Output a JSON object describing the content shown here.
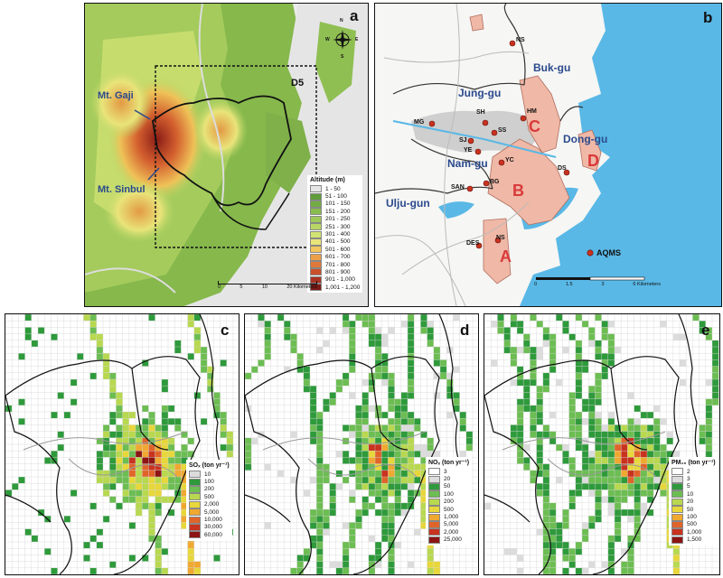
{
  "panels": {
    "a": {
      "label": "a",
      "d5_label": "D5",
      "mt_gaji": "Mt. Gaji",
      "mt_sinbul": "Mt. Sinbul",
      "compass": {
        "n": "N",
        "s": "S",
        "e": "E",
        "w": "W"
      },
      "legend_title": "Altitude (m)",
      "legend": [
        {
          "label": "1 - 50",
          "color": "#e6e6e6"
        },
        {
          "label": "51 - 100",
          "color": "#5f9c3a"
        },
        {
          "label": "101 - 150",
          "color": "#73ab43"
        },
        {
          "label": "151 - 200",
          "color": "#89bb4e"
        },
        {
          "label": "201 - 250",
          "color": "#9fc85a"
        },
        {
          "label": "251 - 300",
          "color": "#b8d666"
        },
        {
          "label": "301 - 400",
          "color": "#d2e273"
        },
        {
          "label": "401 - 500",
          "color": "#e9e47a"
        },
        {
          "label": "501 - 600",
          "color": "#f2c65c"
        },
        {
          "label": "601 - 700",
          "color": "#eca048"
        },
        {
          "label": "701 - 800",
          "color": "#df7838"
        },
        {
          "label": "801 - 900",
          "color": "#c9502b"
        },
        {
          "label": "901 - 1,000",
          "color": "#a83222"
        },
        {
          "label": "1,001 - 1,200",
          "color": "#7a1a16"
        }
      ],
      "scale": {
        "ticks": [
          "0",
          "5",
          "10",
          "20 Kilometers"
        ]
      }
    },
    "b": {
      "label": "b",
      "districts": [
        "Buk-gu",
        "Jung-gu",
        "Dong-gu",
        "Nam-gu",
        "Ulju-gun"
      ],
      "sites": [
        "NS",
        "HM",
        "SH",
        "MG",
        "SS",
        "SJ",
        "YE",
        "YC",
        "DS",
        "BG",
        "SAN",
        "DES",
        "NS"
      ],
      "zones": [
        "A",
        "B",
        "C",
        "D"
      ],
      "aqms": "AQMS",
      "scale": {
        "ticks": [
          "0",
          "1.5",
          "3",
          "6 Kilometers"
        ]
      }
    },
    "c": {
      "label": "c",
      "legend_title": "SOₓ (ton yr⁻¹)",
      "legend": [
        {
          "label": "10",
          "color": "#dcdcdc"
        },
        {
          "label": "100",
          "color": "#2e9a3b"
        },
        {
          "label": "200",
          "color": "#6cbd52"
        },
        {
          "label": "500",
          "color": "#b8d84f"
        },
        {
          "label": "2,000",
          "color": "#e8d73a"
        },
        {
          "label": "5,000",
          "color": "#f0a830"
        },
        {
          "label": "10,000",
          "color": "#e0642a"
        },
        {
          "label": "30,000",
          "color": "#c8321f"
        },
        {
          "label": "60,000",
          "color": "#8c1414"
        }
      ]
    },
    "d": {
      "label": "d",
      "legend_title": "NOₓ (ton yr⁻¹)",
      "legend": [
        {
          "label": "3",
          "color": "#ffffff"
        },
        {
          "label": "20",
          "color": "#dcdcdc"
        },
        {
          "label": "50",
          "color": "#2e9a3b"
        },
        {
          "label": "100",
          "color": "#6cbd52"
        },
        {
          "label": "200",
          "color": "#b8d84f"
        },
        {
          "label": "500",
          "color": "#e8d73a"
        },
        {
          "label": "1,000",
          "color": "#f0a830"
        },
        {
          "label": "5,000",
          "color": "#e0642a"
        },
        {
          "label": "2,000",
          "color": "#c8321f"
        },
        {
          "label": "25,000",
          "color": "#8c1414"
        }
      ]
    },
    "e": {
      "label": "e",
      "legend_title": "PM₁₀ (ton yr⁻¹)",
      "legend": [
        {
          "label": "2",
          "color": "#ffffff"
        },
        {
          "label": "3",
          "color": "#dcdcdc"
        },
        {
          "label": "5",
          "color": "#2e9a3b"
        },
        {
          "label": "10",
          "color": "#6cbd52"
        },
        {
          "label": "20",
          "color": "#b8d84f"
        },
        {
          "label": "50",
          "color": "#e8d73a"
        },
        {
          "label": "100",
          "color": "#f0a830"
        },
        {
          "label": "500",
          "color": "#e0642a"
        },
        {
          "label": "1,000",
          "color": "#c8321f"
        },
        {
          "label": "1,500",
          "color": "#8c1414"
        }
      ]
    }
  }
}
